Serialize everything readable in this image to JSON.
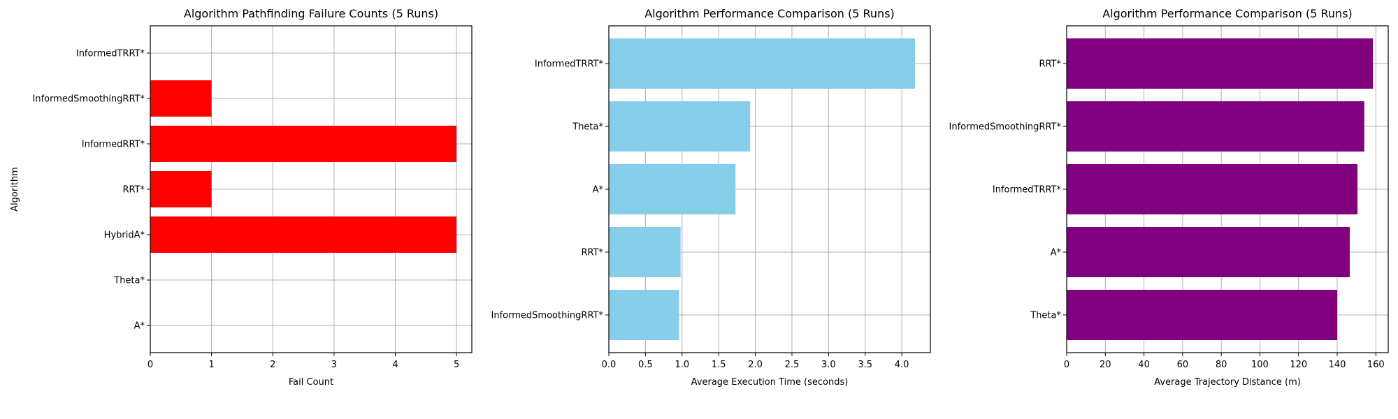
{
  "chart_data": [
    {
      "type": "bar",
      "orientation": "horizontal",
      "title": "Algorithm Pathfinding Failure Counts (5 Runs)",
      "xlabel": "Fail Count",
      "ylabel": "Algorithm",
      "categories": [
        "A*",
        "Theta*",
        "HybridA*",
        "RRT*",
        "InformedRRT*",
        "InformedSmoothingRRT*",
        "InformedTRRT*"
      ],
      "values": [
        0,
        0,
        5,
        1,
        5,
        1,
        0
      ],
      "xlim": [
        0,
        5.25
      ],
      "xticks": [
        0,
        1,
        2,
        3,
        4,
        5
      ],
      "xtick_labels": [
        "0",
        "1",
        "2",
        "3",
        "4",
        "5"
      ],
      "color": "#ff0000",
      "grid": true
    },
    {
      "type": "bar",
      "orientation": "horizontal",
      "title": "Algorithm Performance Comparison (5 Runs)",
      "xlabel": "Average Execution Time (seconds)",
      "ylabel": "",
      "categories": [
        "InformedSmoothingRRT*",
        "RRT*",
        "A*",
        "Theta*",
        "InformedTRRT*"
      ],
      "values": [
        0.96,
        0.98,
        1.73,
        1.93,
        4.18
      ],
      "xlim": [
        0,
        4.39
      ],
      "xticks": [
        0,
        0.5,
        1,
        1.5,
        2,
        2.5,
        3,
        3.5,
        4
      ],
      "xtick_labels": [
        "0.0",
        "0.5",
        "1.0",
        "1.5",
        "2.0",
        "2.5",
        "3.0",
        "3.5",
        "4.0"
      ],
      "color": "#87ceeb",
      "grid": true
    },
    {
      "type": "bar",
      "orientation": "horizontal",
      "title": "Algorithm Performance Comparison (5 Runs)",
      "xlabel": "Average Trajectory Distance (m)",
      "ylabel": "",
      "categories": [
        "Theta*",
        "A*",
        "InformedTRRT*",
        "InformedSmoothingRRT*",
        "RRT*"
      ],
      "values": [
        140,
        146.5,
        150.5,
        154,
        158.5
      ],
      "xlim": [
        0,
        166.4
      ],
      "xticks": [
        0,
        20,
        40,
        60,
        80,
        100,
        120,
        140,
        160
      ],
      "xtick_labels": [
        "0",
        "20",
        "40",
        "60",
        "80",
        "100",
        "120",
        "140",
        "160"
      ],
      "color": "#800080",
      "grid": true
    }
  ]
}
